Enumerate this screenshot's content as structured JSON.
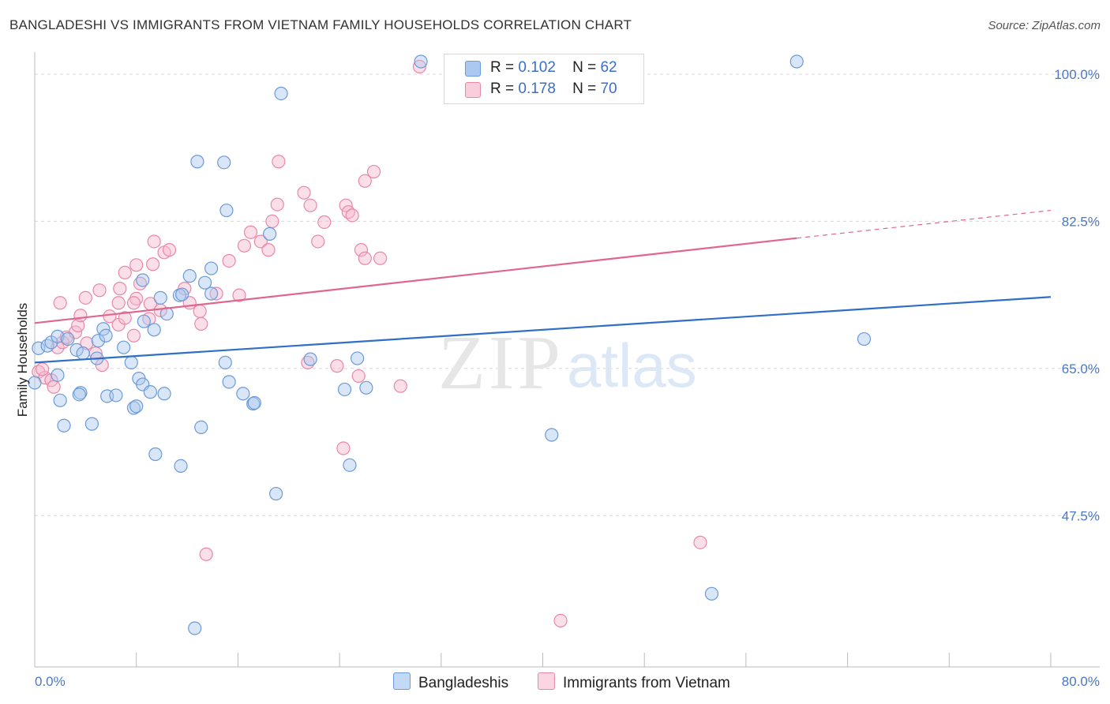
{
  "header": {
    "title": "BANGLADESHI VS IMMIGRANTS FROM VIETNAM FAMILY HOUSEHOLDS CORRELATION CHART",
    "source": "Source: ZipAtlas.com"
  },
  "watermark": {
    "zip": "ZIP",
    "atlas": "atlas"
  },
  "legend_top": {
    "rows": [
      {
        "r_label": "R =",
        "r_value": "0.102",
        "n_label": "N =",
        "n_value": "62"
      },
      {
        "r_label": "R =",
        "r_value": "0.178",
        "n_label": "N =",
        "n_value": "70"
      }
    ]
  },
  "legend_bottom": {
    "series1": "Bangladeshis",
    "series2": "Immigrants from Vietnam"
  },
  "colors": {
    "blue_fill": "#aac8f0",
    "blue_stroke": "#6a9ad8",
    "blue_line": "#2f6fc6",
    "pink_fill": "#f6b8cc",
    "pink_stroke": "#e888a8",
    "pink_line": "#e06690",
    "grid": "#d8d8d8",
    "tick_label": "#4a78c2"
  },
  "chart_data": {
    "type": "scatter",
    "title": "BANGLADESHI VS IMMIGRANTS FROM VIETNAM FAMILY HOUSEHOLDS CORRELATION CHART",
    "xlabel": "",
    "ylabel": "Family Households",
    "xlim": [
      0.0,
      80.0
    ],
    "ylim": [
      29.5,
      101.5
    ],
    "x_tick_labels": [
      "0.0%",
      "80.0%"
    ],
    "y_ticks": [
      47.5,
      65.0,
      82.5,
      100.0
    ],
    "y_tick_labels": [
      "47.5%",
      "65.0%",
      "82.5%",
      "100.0%"
    ],
    "grid": true,
    "legend_position": "top-center",
    "series": [
      {
        "name": "Bangladeshis",
        "r": 0.102,
        "n": 62,
        "trend": {
          "x": [
            0.0,
            80.0
          ],
          "y": [
            65.7,
            73.5
          ]
        },
        "points": [
          [
            0.0,
            63.3
          ],
          [
            0.3,
            67.4
          ],
          [
            1.0,
            67.7
          ],
          [
            1.3,
            68.1
          ],
          [
            1.8,
            68.8
          ],
          [
            2.6,
            68.5
          ],
          [
            3.3,
            67.2
          ],
          [
            5.0,
            68.3
          ],
          [
            5.4,
            69.7
          ],
          [
            5.6,
            68.9
          ],
          [
            4.9,
            66.2
          ],
          [
            3.8,
            66.8
          ],
          [
            7.0,
            67.5
          ],
          [
            8.6,
            70.6
          ],
          [
            7.6,
            65.7
          ],
          [
            8.2,
            63.8
          ],
          [
            8.5,
            63.1
          ],
          [
            8.5,
            75.5
          ],
          [
            9.4,
            69.6
          ],
          [
            9.9,
            73.4
          ],
          [
            10.4,
            71.5
          ],
          [
            11.4,
            73.7
          ],
          [
            11.6,
            73.8
          ],
          [
            12.2,
            76.0
          ],
          [
            13.9,
            73.9
          ],
          [
            13.4,
            75.2
          ],
          [
            13.9,
            76.9
          ],
          [
            15.0,
            65.7
          ],
          [
            1.8,
            64.2
          ],
          [
            2.0,
            61.2
          ],
          [
            3.6,
            62.1
          ],
          [
            3.5,
            61.9
          ],
          [
            5.7,
            61.7
          ],
          [
            6.4,
            61.8
          ],
          [
            7.8,
            60.3
          ],
          [
            8.0,
            60.5
          ],
          [
            9.1,
            62.2
          ],
          [
            10.2,
            62.0
          ],
          [
            16.4,
            62.0
          ],
          [
            17.2,
            60.8
          ],
          [
            17.3,
            60.9
          ],
          [
            15.3,
            63.4
          ],
          [
            2.3,
            58.2
          ],
          [
            4.5,
            58.4
          ],
          [
            13.1,
            58.0
          ],
          [
            9.5,
            54.8
          ],
          [
            11.5,
            53.4
          ],
          [
            24.8,
            53.5
          ],
          [
            19.0,
            50.1
          ],
          [
            12.8,
            89.6
          ],
          [
            14.9,
            89.5
          ],
          [
            15.1,
            83.8
          ],
          [
            18.5,
            81.0
          ],
          [
            19.4,
            97.7
          ],
          [
            30.4,
            101.5
          ],
          [
            60.0,
            101.5
          ],
          [
            25.4,
            66.2
          ],
          [
            21.7,
            66.1
          ],
          [
            24.4,
            62.5
          ],
          [
            26.1,
            62.7
          ],
          [
            40.7,
            57.1
          ],
          [
            65.3,
            68.5
          ],
          [
            53.3,
            38.2
          ],
          [
            12.6,
            34.1
          ]
        ]
      },
      {
        "name": "Immigrants from Vietnam",
        "r": 0.178,
        "n": 70,
        "trend": {
          "x": [
            0.0,
            60.0
          ],
          "y": [
            70.4,
            80.5
          ],
          "x_dashed": [
            60.0,
            80.0
          ],
          "y_dashed": [
            80.5,
            83.8
          ]
        },
        "points": [
          [
            0.3,
            64.6
          ],
          [
            0.8,
            63.9
          ],
          [
            1.3,
            63.6
          ],
          [
            0.6,
            64.9
          ],
          [
            1.5,
            62.8
          ],
          [
            1.8,
            67.5
          ],
          [
            2.2,
            68.1
          ],
          [
            2.5,
            68.7
          ],
          [
            3.2,
            69.3
          ],
          [
            3.4,
            70.1
          ],
          [
            3.6,
            71.3
          ],
          [
            4.1,
            68.0
          ],
          [
            4.8,
            66.8
          ],
          [
            5.3,
            65.4
          ],
          [
            5.9,
            71.2
          ],
          [
            6.6,
            70.2
          ],
          [
            6.6,
            72.8
          ],
          [
            7.1,
            71.0
          ],
          [
            7.8,
            68.9
          ],
          [
            8.0,
            73.3
          ],
          [
            8.3,
            75.1
          ],
          [
            7.8,
            72.8
          ],
          [
            9.0,
            70.9
          ],
          [
            9.1,
            72.7
          ],
          [
            9.9,
            71.9
          ],
          [
            2.0,
            72.8
          ],
          [
            4.0,
            73.4
          ],
          [
            5.1,
            74.3
          ],
          [
            6.7,
            74.5
          ],
          [
            7.1,
            76.4
          ],
          [
            8.0,
            77.3
          ],
          [
            9.3,
            77.4
          ],
          [
            10.2,
            78.8
          ],
          [
            10.6,
            79.1
          ],
          [
            9.4,
            80.1
          ],
          [
            11.8,
            74.5
          ],
          [
            12.2,
            72.8
          ],
          [
            13.0,
            71.8
          ],
          [
            13.1,
            70.3
          ],
          [
            14.3,
            73.9
          ],
          [
            15.3,
            77.8
          ],
          [
            16.1,
            73.7
          ],
          [
            16.5,
            79.6
          ],
          [
            17.0,
            81.2
          ],
          [
            17.8,
            80.1
          ],
          [
            18.4,
            79.1
          ],
          [
            18.7,
            82.5
          ],
          [
            19.1,
            84.5
          ],
          [
            19.2,
            89.6
          ],
          [
            21.2,
            85.9
          ],
          [
            21.7,
            84.4
          ],
          [
            22.3,
            80.1
          ],
          [
            22.8,
            82.4
          ],
          [
            24.5,
            84.4
          ],
          [
            24.7,
            83.6
          ],
          [
            25.7,
            79.1
          ],
          [
            26.0,
            78.1
          ],
          [
            27.2,
            78.1
          ],
          [
            25.0,
            83.2
          ],
          [
            26.0,
            87.3
          ],
          [
            26.7,
            88.4
          ],
          [
            21.5,
            65.7
          ],
          [
            25.5,
            64.1
          ],
          [
            28.8,
            62.9
          ],
          [
            23.8,
            65.3
          ],
          [
            24.3,
            55.5
          ],
          [
            13.5,
            42.9
          ],
          [
            41.4,
            35.0
          ],
          [
            30.3,
            100.9
          ],
          [
            52.4,
            44.3
          ]
        ]
      }
    ]
  }
}
